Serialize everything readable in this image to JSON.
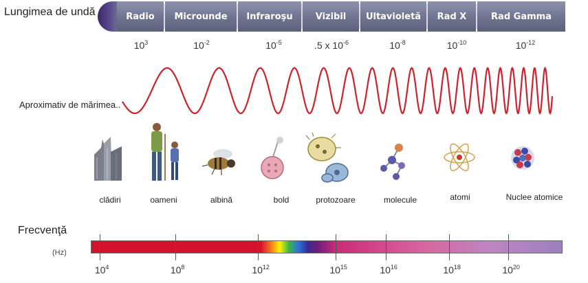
{
  "wavelength": {
    "title": "Lungimea de undă (m)",
    "bands": [
      "Radio",
      "Microunde",
      "Infraroşu",
      "Vizibil",
      "Ultavioletă",
      "Rad X",
      "Rad Gamma"
    ],
    "values": [
      {
        "base": "10",
        "exp": "3"
      },
      {
        "base": "10",
        "exp": "-2"
      },
      {
        "base": "10",
        "exp": "-5"
      },
      {
        "base": ".5 x 10",
        "exp": "-6"
      },
      {
        "base": "10",
        "exp": "-8"
      },
      {
        "base": "10",
        "exp": "-10"
      },
      {
        "base": "10",
        "exp": "-12"
      }
    ]
  },
  "size_caption": "Aproximativ de mărimea..",
  "objects": [
    {
      "label": "clădiri",
      "icon": "buildings-icon"
    },
    {
      "label": "oameni",
      "icon": "people-icon"
    },
    {
      "label": "albină",
      "icon": "bee-icon"
    },
    {
      "label": "bold",
      "icon": "pin-icon"
    },
    {
      "label": "protozoare",
      "icon": "protozoa-icon"
    },
    {
      "label": "molecule",
      "icon": "molecule-icon"
    },
    {
      "label": "atomi",
      "icon": "atom-icon"
    },
    {
      "label": "Nuclee atomice",
      "icon": "nucleus-icon"
    }
  ],
  "frequency": {
    "title": "Frecvenţă",
    "unit": "(Hz)",
    "values": [
      {
        "base": "10",
        "exp": "4"
      },
      {
        "base": "10",
        "exp": "8"
      },
      {
        "base": "10",
        "exp": "12"
      },
      {
        "base": "10",
        "exp": "15"
      },
      {
        "base": "10",
        "exp": "16"
      },
      {
        "base": "10",
        "exp": "18"
      },
      {
        "base": "10",
        "exp": "20"
      }
    ]
  },
  "colors": {
    "wave": "#d0202a",
    "band_bg": "#6e748f",
    "band_text": "#ffffff"
  }
}
